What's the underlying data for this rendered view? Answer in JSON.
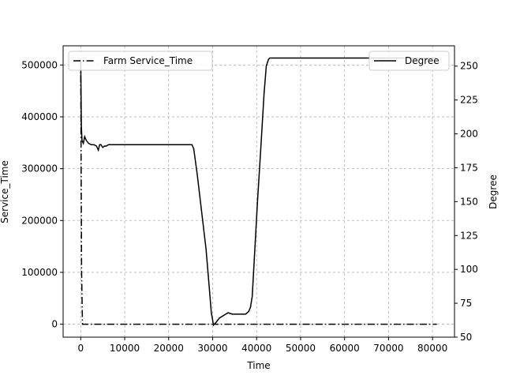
{
  "chart_data": {
    "type": "line",
    "xlabel": "Time",
    "ylabel_left": "Service_Time",
    "ylabel_right": "Degree",
    "xlim": [
      -4000,
      85000
    ],
    "ylim_left": [
      -25000,
      537000
    ],
    "ylim_right": [
      50,
      265
    ],
    "x_ticks": [
      0,
      10000,
      20000,
      30000,
      40000,
      50000,
      60000,
      70000,
      80000
    ],
    "y_left_ticks": [
      0,
      100000,
      200000,
      300000,
      400000,
      500000
    ],
    "y_right_ticks": [
      50,
      75,
      100,
      125,
      150,
      175,
      200,
      225,
      250
    ],
    "grid": true,
    "legends": [
      {
        "name": "Farm Service_Time",
        "style": "dashdot",
        "placement": "upper left"
      },
      {
        "name": "Degree",
        "style": "solid",
        "placement": "upper right"
      }
    ],
    "series": [
      {
        "name": "Farm Service_Time",
        "axis": "left",
        "style": "dashdot",
        "x": [
          0,
          100,
          200,
          400,
          700,
          81000
        ],
        "y": [
          505000,
          300000,
          100000,
          0,
          0,
          0
        ]
      },
      {
        "name": "Degree",
        "axis": "right",
        "style": "solid",
        "x": [
          0,
          150,
          300,
          600,
          900,
          1300,
          1800,
          2400,
          3000,
          3600,
          4000,
          4300,
          4600,
          5000,
          5400,
          5800,
          6300,
          25300,
          25700,
          26500,
          28500,
          29200,
          29700,
          30200,
          30800,
          31500,
          32500,
          33500,
          34500,
          35500,
          36500,
          37500,
          38200,
          38600,
          39000,
          39600,
          40200,
          41000,
          41700,
          42200,
          42700,
          43000,
          81000
        ],
        "y": [
          255,
          205,
          195,
          193,
          198,
          195,
          193,
          192,
          192,
          191,
          188,
          192,
          192,
          190,
          191,
          191,
          192,
          192,
          189,
          170,
          115,
          88,
          68,
          59,
          61,
          64,
          66,
          68,
          67,
          67,
          67,
          67,
          69,
          72,
          80,
          115,
          150,
          192,
          230,
          250,
          255,
          256,
          256
        ]
      }
    ]
  }
}
